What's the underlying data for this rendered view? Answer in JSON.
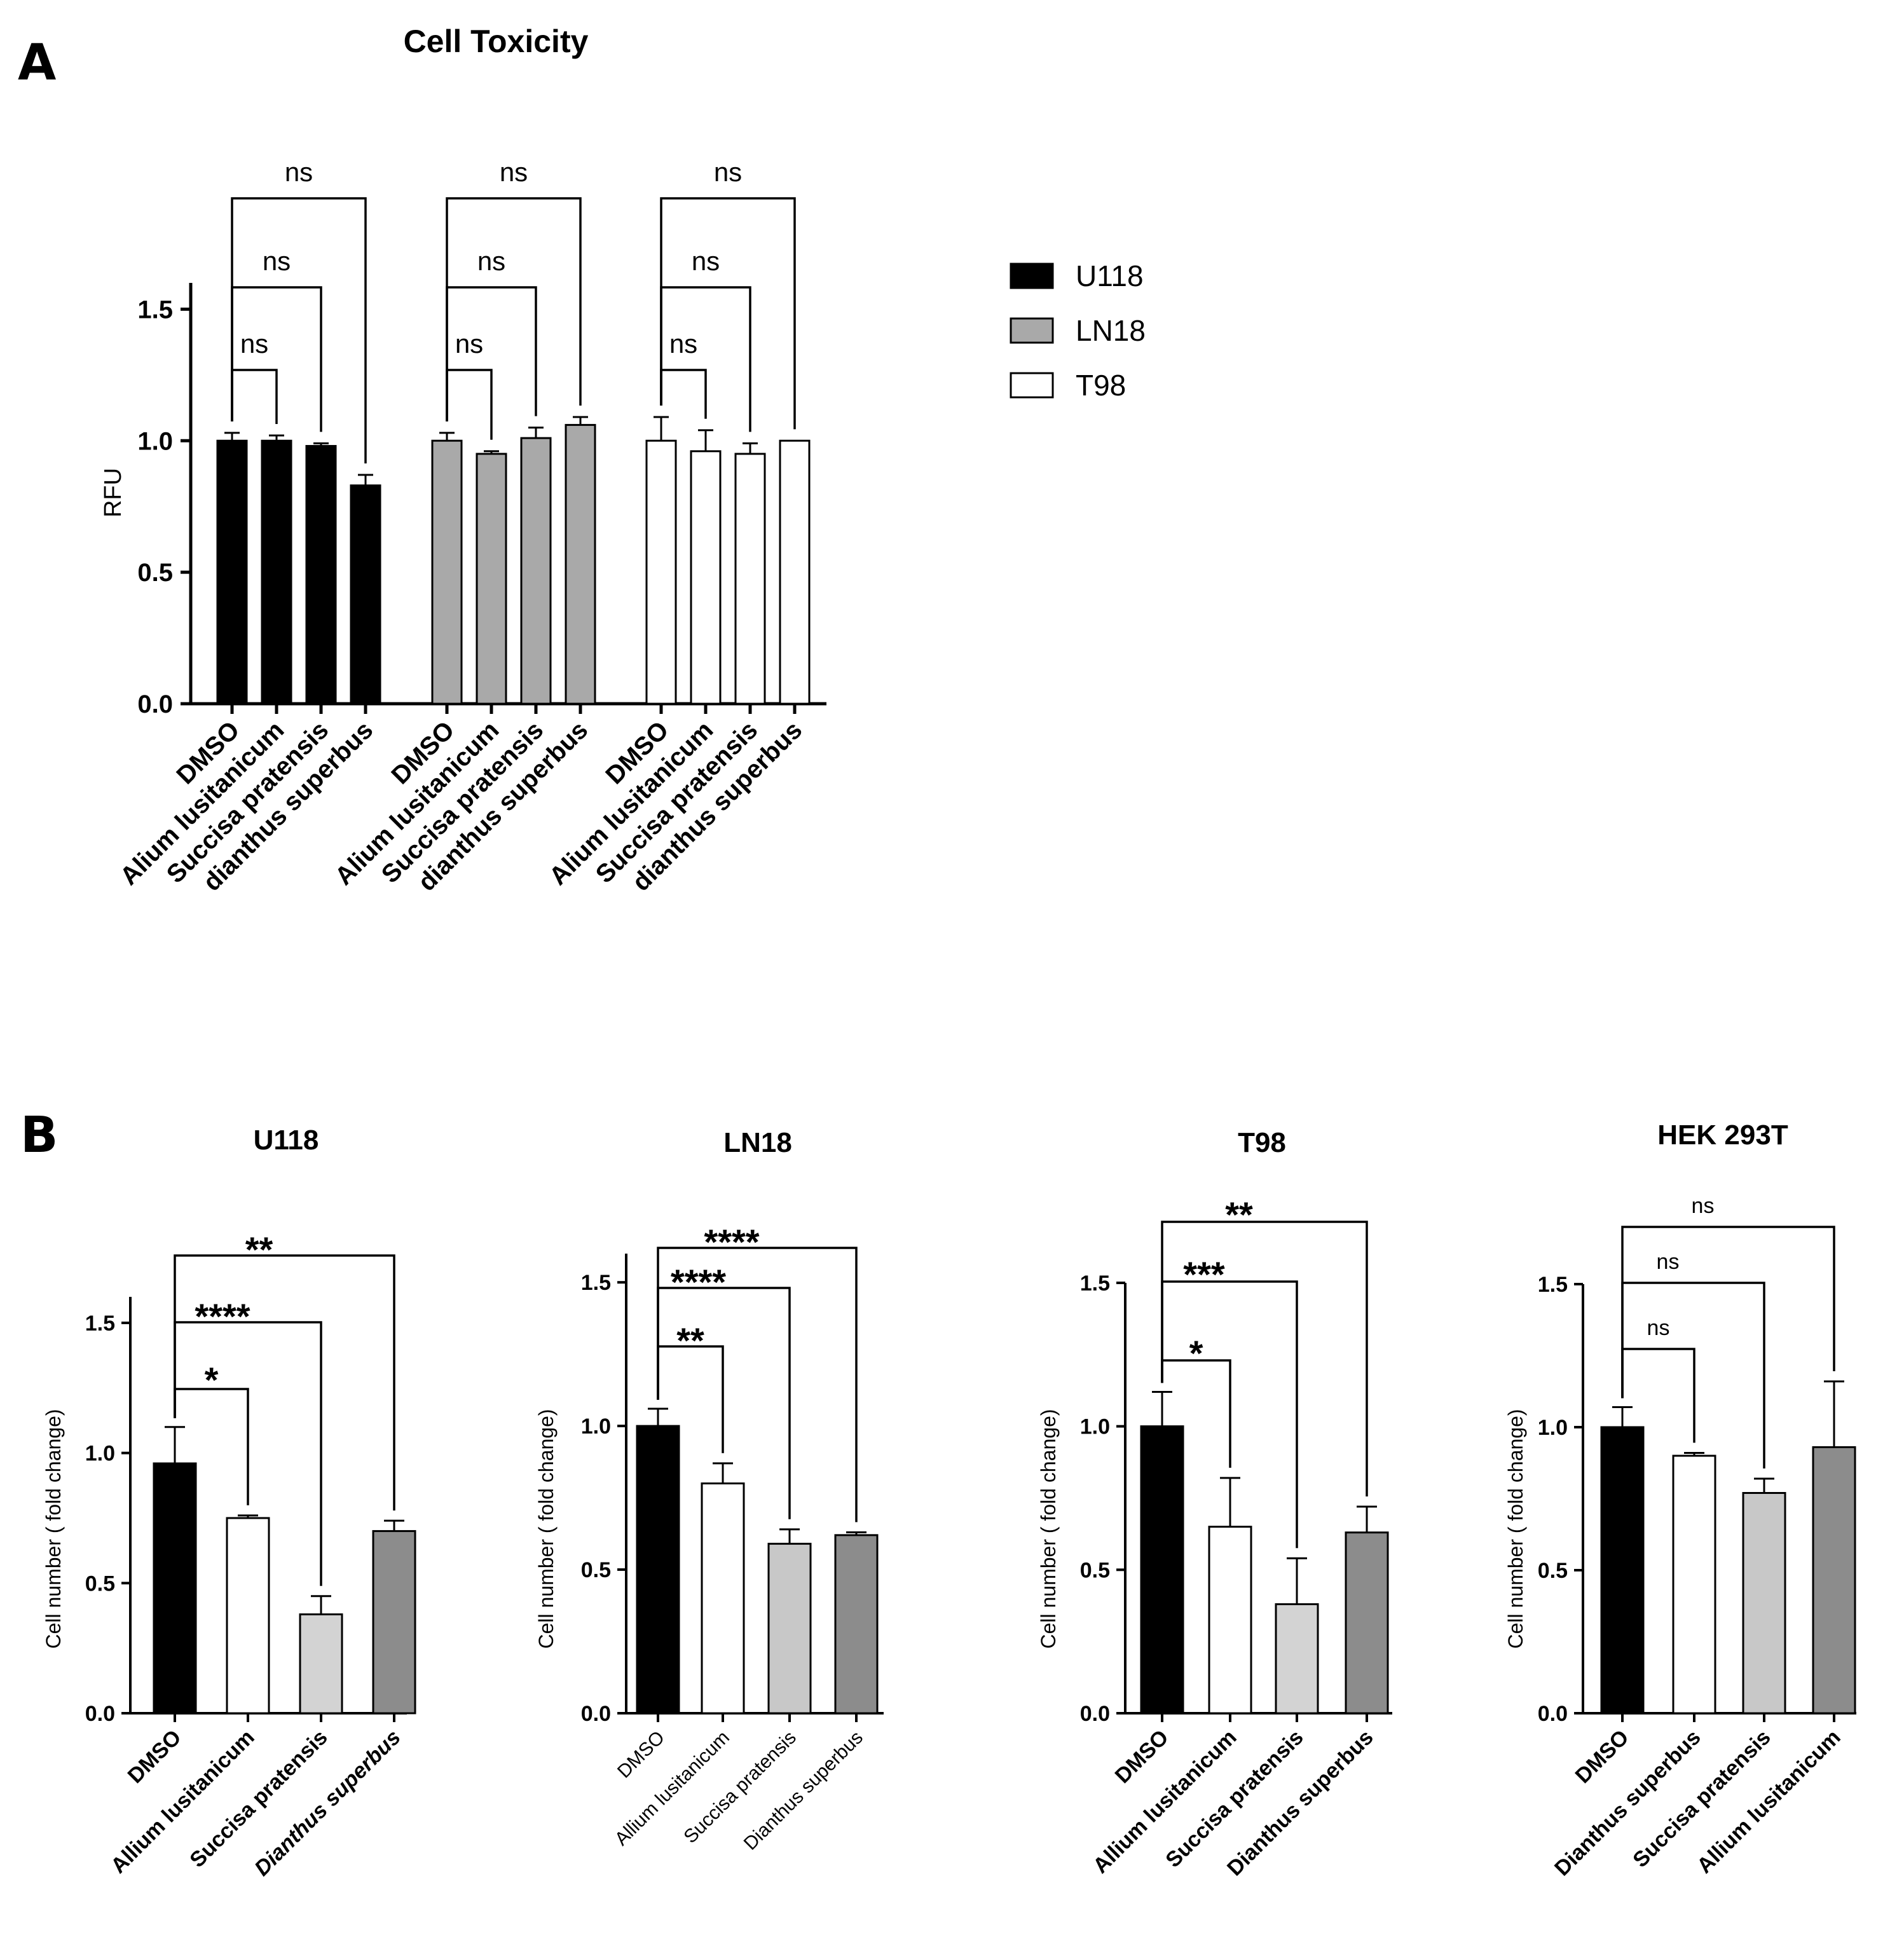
{
  "panels": {
    "A": {
      "letter": "A"
    },
    "B": {
      "letter": "B"
    }
  },
  "legend": [
    {
      "label": "U118",
      "color": "#000000"
    },
    {
      "label": "LN18",
      "color": "#a9a9a9"
    },
    {
      "label": "T98",
      "color": "#ffffff"
    }
  ],
  "chart_data": [
    {
      "id": "A",
      "type": "bar",
      "title": "Cell Toxicity",
      "ylabel": "RFU",
      "xlabel": "",
      "ylim": [
        0,
        1.6
      ],
      "yticks": [
        0.0,
        0.5,
        1.0,
        1.5
      ],
      "ytick_labels": [
        "0.0",
        "0.5",
        "1.0",
        "1.5"
      ],
      "categories": [
        "DMSO",
        "Alium lusitanicum",
        "Succisa pratensis",
        "dianthus superbus"
      ],
      "series": [
        {
          "name": "U118",
          "color": "#000000",
          "values": [
            1.0,
            1.0,
            0.98,
            0.83
          ],
          "errors": [
            0.03,
            0.02,
            0.01,
            0.04
          ]
        },
        {
          "name": "LN18",
          "color": "#a9a9a9",
          "values": [
            1.0,
            0.95,
            1.01,
            1.06
          ],
          "errors": [
            0.03,
            0.01,
            0.04,
            0.03
          ]
        },
        {
          "name": "T98",
          "color": "#ffffff",
          "values": [
            1.0,
            0.96,
            0.95,
            1.0
          ],
          "errors": [
            0.09,
            0.08,
            0.04,
            0.0
          ]
        }
      ],
      "comparisons": [
        {
          "series": 0,
          "from": 0,
          "to": 1,
          "label": "ns"
        },
        {
          "series": 0,
          "from": 0,
          "to": 2,
          "label": "ns"
        },
        {
          "series": 0,
          "from": 0,
          "to": 3,
          "label": "ns"
        },
        {
          "series": 1,
          "from": 0,
          "to": 1,
          "label": "ns"
        },
        {
          "series": 1,
          "from": 0,
          "to": 2,
          "label": "ns"
        },
        {
          "series": 1,
          "from": 0,
          "to": 3,
          "label": "ns"
        },
        {
          "series": 2,
          "from": 0,
          "to": 1,
          "label": "ns"
        },
        {
          "series": 2,
          "from": 0,
          "to": 2,
          "label": "ns"
        },
        {
          "series": 2,
          "from": 0,
          "to": 3,
          "label": "ns"
        }
      ]
    },
    {
      "id": "B1",
      "type": "bar",
      "title": "U118",
      "ylabel": "Cell number ( fold change)",
      "ylim": [
        0,
        1.6
      ],
      "yticks": [
        0.0,
        0.5,
        1.0,
        1.5
      ],
      "ytick_labels": [
        "0.0",
        "0.5",
        "1.0",
        "1.5"
      ],
      "categories": [
        "DMSO",
        "Allium lusitanicum",
        "Succisa pratensis",
        "Dianthus superbus"
      ],
      "italic": [
        false,
        false,
        false,
        true
      ],
      "values": [
        0.96,
        0.75,
        0.38,
        0.7
      ],
      "errors": [
        0.14,
        0.01,
        0.07,
        0.04
      ],
      "colors": [
        "#000000",
        "#ffffff",
        "#d3d3d3",
        "#8c8c8c"
      ],
      "comparisons": [
        {
          "from": 0,
          "to": 1,
          "label": "*"
        },
        {
          "from": 0,
          "to": 2,
          "label": "****"
        },
        {
          "from": 0,
          "to": 3,
          "label": "**"
        }
      ]
    },
    {
      "id": "B2",
      "type": "bar",
      "title": "LN18",
      "ylabel": "Cell number ( fold change)",
      "ylim": [
        0,
        1.6
      ],
      "yticks": [
        0.0,
        0.5,
        1.0,
        1.5
      ],
      "ytick_labels": [
        "0.0",
        "0.5",
        "1.0",
        "1.5"
      ],
      "categories": [
        "DMSO",
        "Allium lusitanicum",
        "Succisa pratensis",
        "Dianthus superbus"
      ],
      "italic": [
        false,
        false,
        false,
        false
      ],
      "values": [
        1.0,
        0.8,
        0.59,
        0.62
      ],
      "errors": [
        0.06,
        0.07,
        0.05,
        0.01
      ],
      "colors": [
        "#000000",
        "#ffffff",
        "#c8c8c8",
        "#8c8c8c"
      ],
      "comparisons": [
        {
          "from": 0,
          "to": 1,
          "label": "**"
        },
        {
          "from": 0,
          "to": 2,
          "label": "****"
        },
        {
          "from": 0,
          "to": 3,
          "label": "****"
        }
      ]
    },
    {
      "id": "B3",
      "type": "bar",
      "title": "T98",
      "ylabel": "Cell number ( fold change)",
      "ylim": [
        0,
        1.5
      ],
      "yticks": [
        0.0,
        0.5,
        1.0,
        1.5
      ],
      "ytick_labels": [
        "0.0",
        "0.5",
        "1.0",
        "1.5"
      ],
      "categories": [
        "DMSO",
        "Allium lusitanicum",
        "Succisa pratensis",
        "Dianthus superbus"
      ],
      "italic": [
        false,
        false,
        false,
        false
      ],
      "values": [
        1.0,
        0.65,
        0.38,
        0.63
      ],
      "errors": [
        0.12,
        0.17,
        0.16,
        0.09
      ],
      "colors": [
        "#000000",
        "#ffffff",
        "#d3d3d3",
        "#8c8c8c"
      ],
      "comparisons": [
        {
          "from": 0,
          "to": 1,
          "label": "*"
        },
        {
          "from": 0,
          "to": 2,
          "label": "***"
        },
        {
          "from": 0,
          "to": 3,
          "label": "**"
        }
      ]
    },
    {
      "id": "B4",
      "type": "bar",
      "title": "HEK 293T",
      "ylabel": "Cell number ( fold change)",
      "ylim": [
        0,
        1.5
      ],
      "yticks": [
        0.0,
        0.5,
        1.0,
        1.5
      ],
      "ytick_labels": [
        "0.0",
        "0.5",
        "1.0",
        "1.5"
      ],
      "categories": [
        "DMSO",
        "Dianthus superbus",
        "Succisa pratensis",
        "Allium lusitanicum"
      ],
      "italic": [
        false,
        false,
        false,
        false
      ],
      "values": [
        1.0,
        0.9,
        0.77,
        0.93
      ],
      "errors": [
        0.07,
        0.01,
        0.05,
        0.23
      ],
      "colors": [
        "#000000",
        "#ffffff",
        "#c8c8c8",
        "#8c8c8c"
      ],
      "comparisons": [
        {
          "from": 0,
          "to": 1,
          "label": "ns"
        },
        {
          "from": 0,
          "to": 2,
          "label": "ns"
        },
        {
          "from": 0,
          "to": 3,
          "label": "ns"
        }
      ]
    }
  ]
}
